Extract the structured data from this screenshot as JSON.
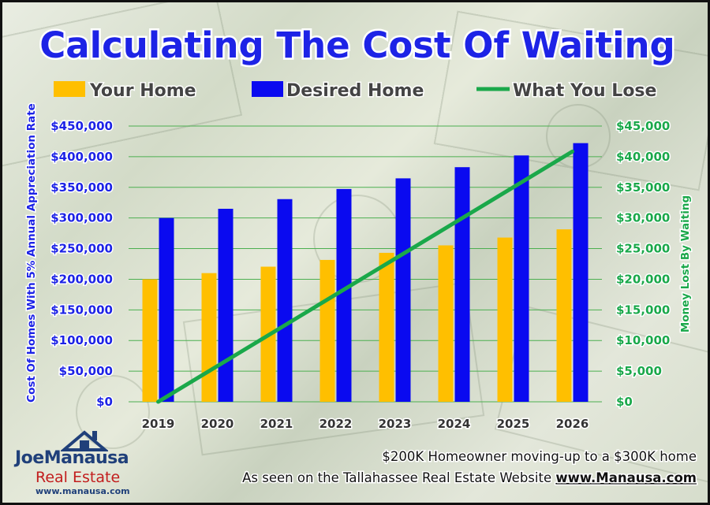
{
  "colors": {
    "your_home": "#ffbf00",
    "desired_home": "#0a0af0",
    "what_you_lose": "#1aa84a",
    "title": "#1d23e6",
    "gridline": "#4caf50"
  },
  "chart_data": {
    "type": "bar",
    "title": "Calculating The Cost Of Waiting",
    "categories": [
      "2019",
      "2020",
      "2021",
      "2022",
      "2023",
      "2024",
      "2025",
      "2026"
    ],
    "series": [
      {
        "name": "Your Home",
        "type": "bar",
        "axis": "left",
        "values": [
          200000,
          210000,
          220500,
          231525,
          243101,
          255256,
          268019,
          281420
        ]
      },
      {
        "name": "Desired Home",
        "type": "bar",
        "axis": "left",
        "values": [
          300000,
          315000,
          330750,
          347288,
          364652,
          382884,
          402029,
          422130
        ]
      },
      {
        "name": "What You Lose",
        "type": "line",
        "axis": "right",
        "values": [
          0,
          5833,
          11667,
          17500,
          23333,
          29167,
          35000,
          40841
        ]
      }
    ],
    "ylabel_left": "Cost Of Homes With 5% Annual Appreciation Rate",
    "ylabel_right": "Money Lost By Waiting",
    "ylim_left": [
      0,
      450000
    ],
    "ylim_right": [
      0,
      45000
    ],
    "yticks_left": [
      "$0",
      "$50,000",
      "$100,000",
      "$150,000",
      "$200,000",
      "$250,000",
      "$300,000",
      "$350,000",
      "$400,000",
      "$450,000"
    ],
    "yticks_right": [
      "$0",
      "$5,000",
      "$10,000",
      "$15,000",
      "$20,000",
      "$25,000",
      "$30,000",
      "$35,000",
      "$40,000",
      "$45,000"
    ],
    "grid": true,
    "legend_position": "top"
  },
  "footer": {
    "line1": "$200K Homeowner moving-up to a $300K home",
    "line2_prefix": "As seen on the Tallahassee Real Estate Website ",
    "line2_link": "www.Manausa.com"
  },
  "logo": {
    "name": "JoeManausa",
    "subtitle": "Real Estate",
    "url": "www.manausa.com"
  }
}
